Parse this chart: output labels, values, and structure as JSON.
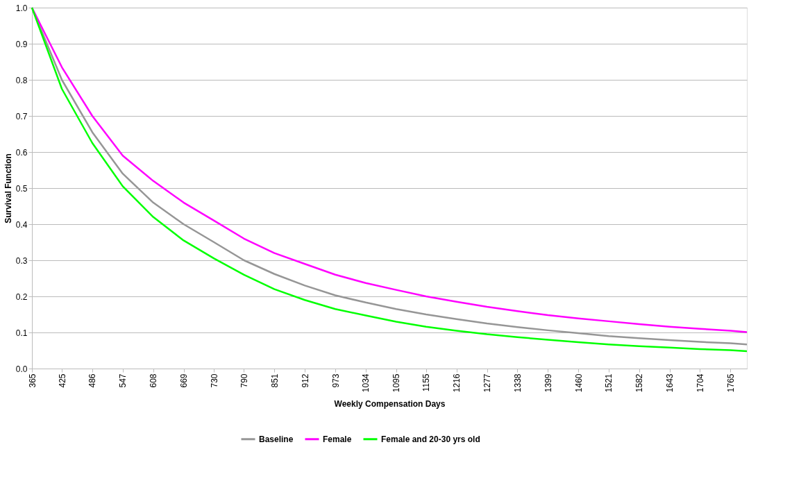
{
  "chart_data": {
    "type": "line",
    "xlabel": "Weekly Compensation Days",
    "ylabel": "Survival Function",
    "x": [
      365,
      425,
      486,
      547,
      608,
      669,
      730,
      790,
      851,
      912,
      973,
      1034,
      1095,
      1155,
      1216,
      1277,
      1338,
      1399,
      1460,
      1521,
      1582,
      1643,
      1704,
      1765,
      1798
    ],
    "series": [
      {
        "name": "Baseline",
        "color": "#969696",
        "values": [
          1.0,
          0.8,
          0.655,
          0.54,
          0.46,
          0.4,
          0.35,
          0.3,
          0.262,
          0.23,
          0.203,
          0.183,
          0.165,
          0.15,
          0.137,
          0.125,
          0.115,
          0.106,
          0.098,
          0.09,
          0.084,
          0.079,
          0.074,
          0.07,
          0.067
        ]
      },
      {
        "name": "Female",
        "color": "#ff00ff",
        "values": [
          1.0,
          0.835,
          0.7,
          0.59,
          0.52,
          0.46,
          0.41,
          0.36,
          0.32,
          0.29,
          0.26,
          0.237,
          0.218,
          0.2,
          0.185,
          0.171,
          0.159,
          0.148,
          0.139,
          0.131,
          0.123,
          0.116,
          0.11,
          0.105,
          0.101
        ]
      },
      {
        "name": "Female and 20-30 yrs old",
        "color": "#00ff00",
        "values": [
          1.0,
          0.775,
          0.625,
          0.505,
          0.42,
          0.355,
          0.305,
          0.26,
          0.22,
          0.19,
          0.165,
          0.147,
          0.13,
          0.116,
          0.105,
          0.095,
          0.087,
          0.08,
          0.073,
          0.067,
          0.062,
          0.058,
          0.054,
          0.051,
          0.048
        ]
      }
    ],
    "xlim": [
      365,
      1798
    ],
    "xticks": [
      365,
      425,
      486,
      547,
      608,
      669,
      730,
      790,
      851,
      912,
      973,
      1034,
      1095,
      1155,
      1216,
      1277,
      1338,
      1399,
      1460,
      1521,
      1582,
      1643,
      1704,
      1765
    ],
    "ylim": [
      0,
      1
    ],
    "yticks": [
      {
        "value": 0,
        "label": "0.0"
      },
      0.1,
      0.2,
      0.3,
      0.4,
      0.5,
      0.6,
      0.7,
      0.8,
      0.9,
      {
        "value": 1,
        "label": "1.0"
      }
    ],
    "grid": "y",
    "legend": "bottom",
    "marker": "none",
    "line_style": "solid"
  }
}
